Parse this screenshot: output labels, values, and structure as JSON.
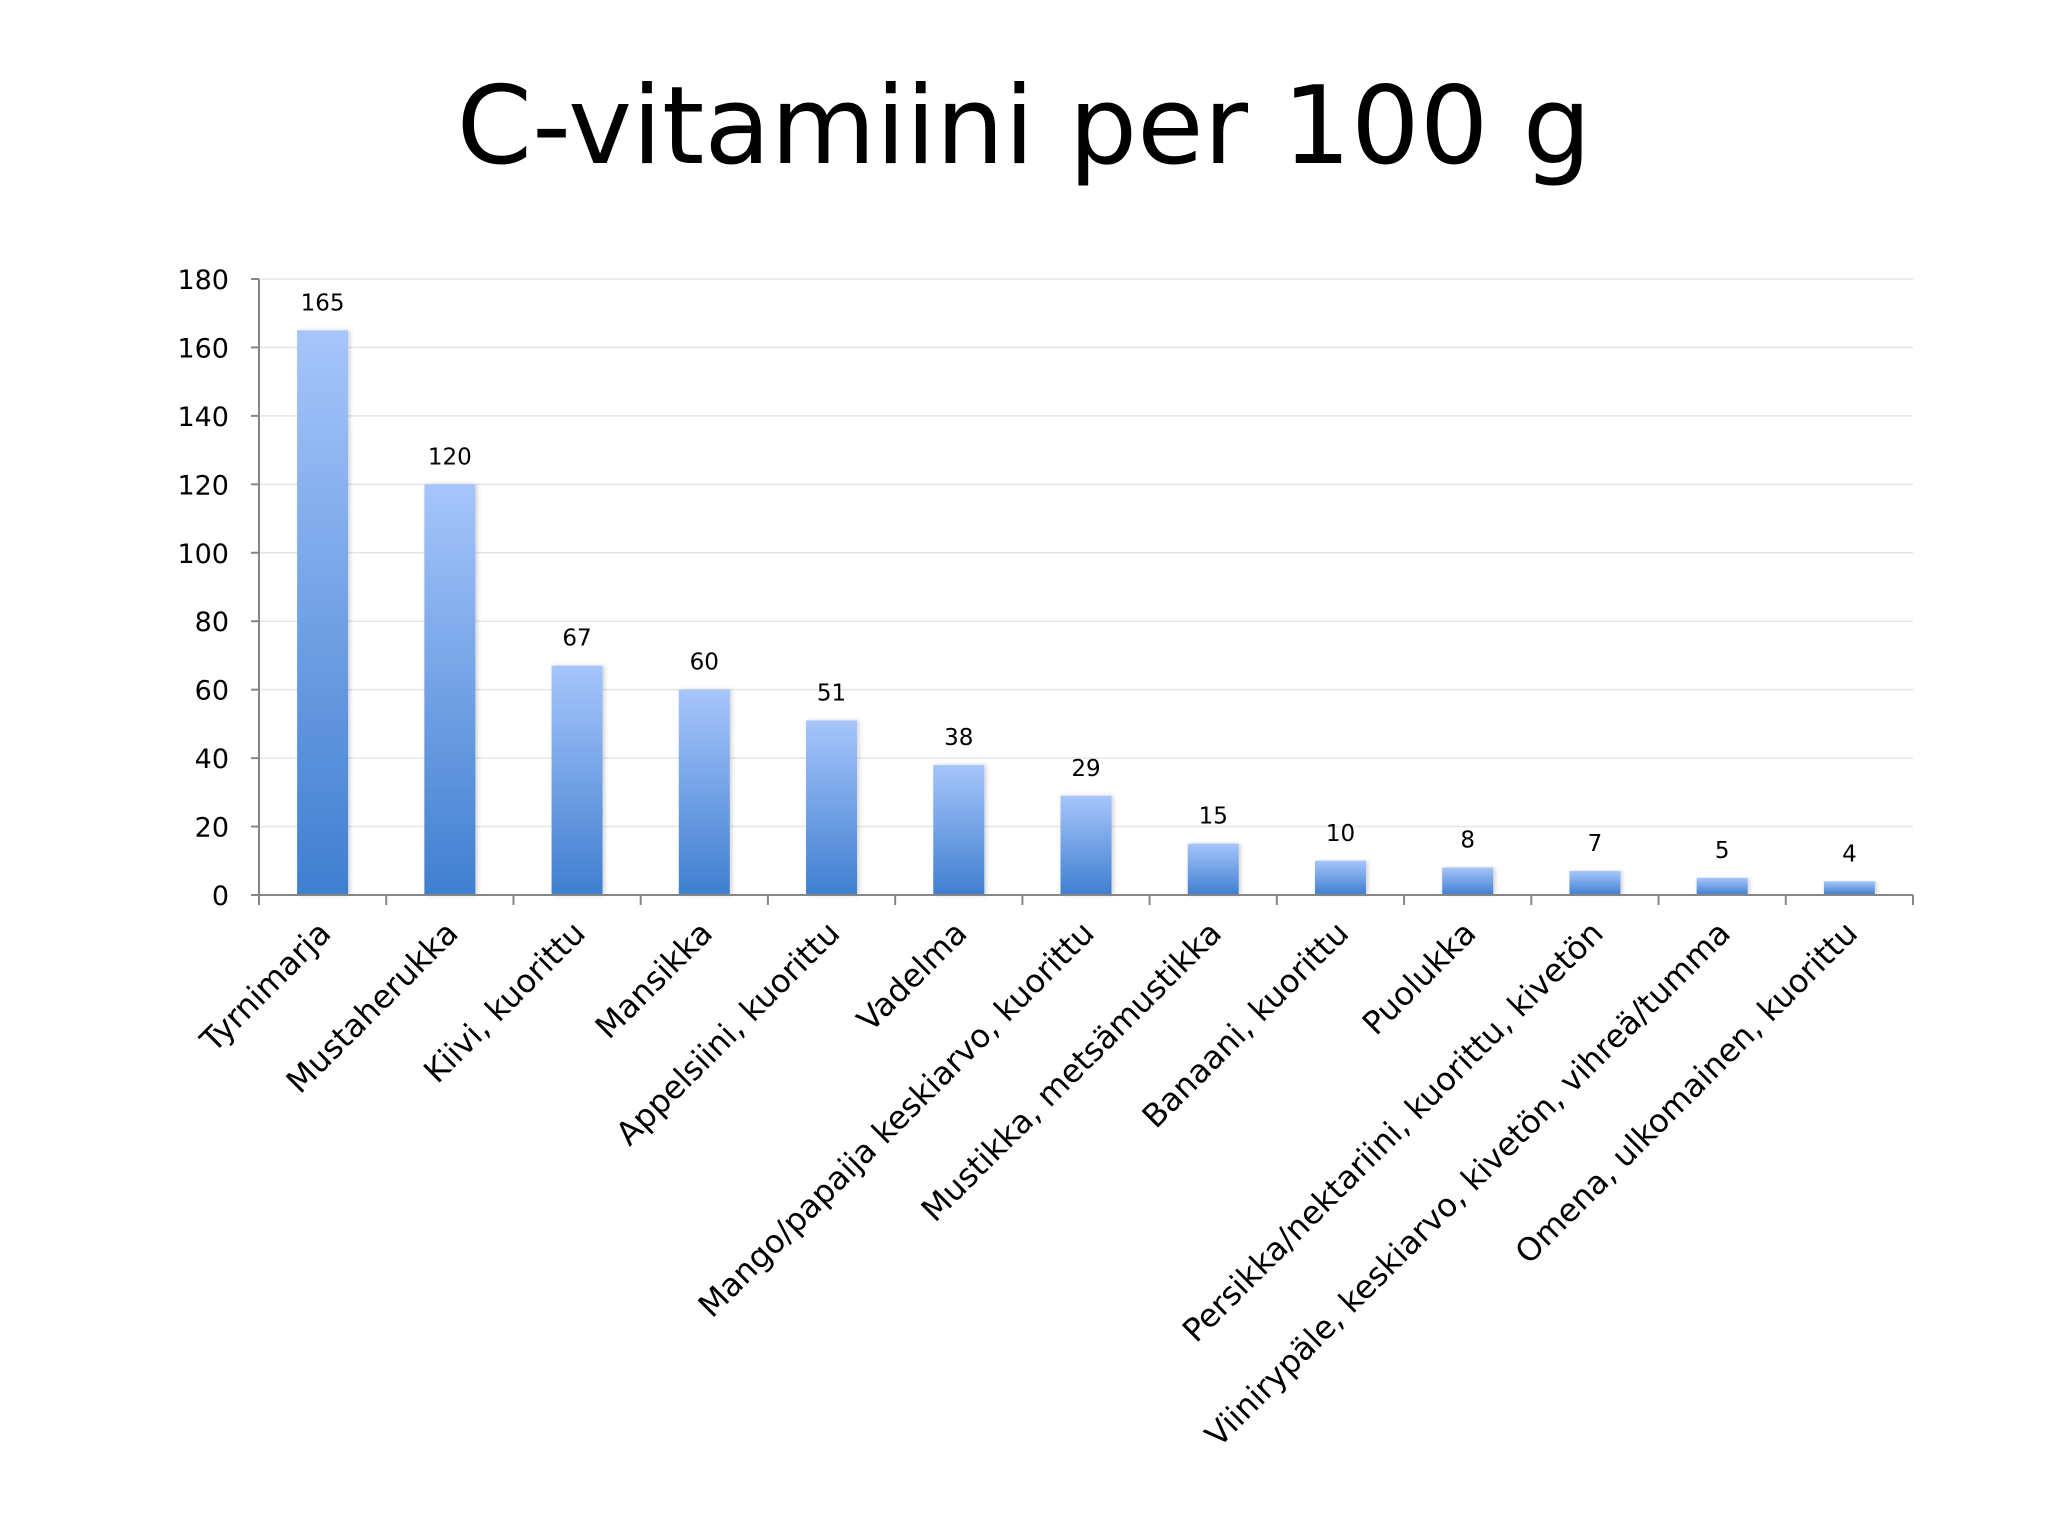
{
  "slide": {
    "title": "C-vitamiini per 100 g"
  },
  "chart_data": {
    "type": "bar",
    "title": "",
    "xlabel": "",
    "ylabel": "",
    "ylim": [
      0,
      180
    ],
    "yticks": [
      0,
      20,
      40,
      60,
      80,
      100,
      120,
      140,
      160,
      180
    ],
    "grid": true,
    "legend": "none",
    "categories": [
      "Tyrnimarja",
      "Mustaherukka",
      "Kiivi, kuorittu",
      "Mansikka",
      "Appelsiini, kuorittu",
      "Vadelma",
      "Mango/papaija keskiarvo, kuorittu",
      "Mustikka, metsämustikka",
      "Banaani, kuorittu",
      "Puolukka",
      "Persikka/nektariini, kuorittu, kivetön",
      "Viinirypäle, keskiarvo, kivetön, vihreä/tumma",
      "Omena, ulkomainen, kuorittu"
    ],
    "values": [
      165,
      120,
      67,
      60,
      51,
      38,
      29,
      15,
      10,
      8,
      7,
      5,
      4
    ],
    "data_labels": [
      "165",
      "120",
      "67",
      "60",
      "51",
      "38",
      "29",
      "15",
      "10",
      "8",
      "7",
      "5",
      "4"
    ],
    "colors": {
      "bar_top": "#a6c5fb",
      "bar_bottom": "#3f7fd0",
      "grid": "#e6e6e6",
      "axis": "#868686"
    }
  }
}
